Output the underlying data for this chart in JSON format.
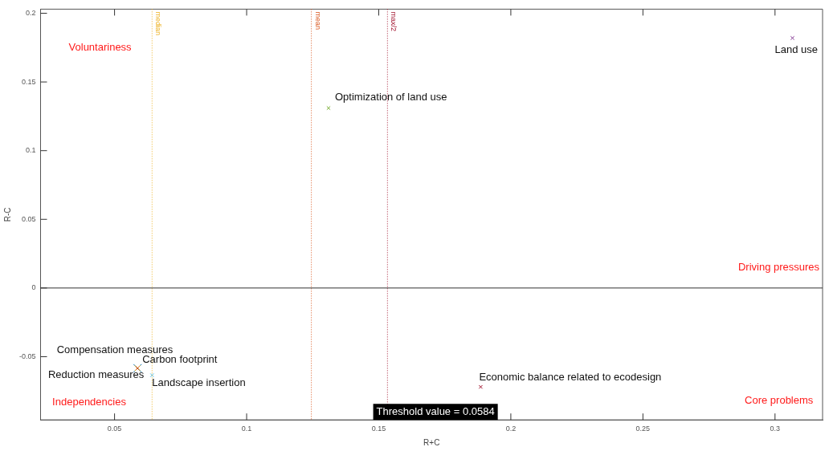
{
  "chart_data": {
    "type": "scatter",
    "xlabel": "R+C",
    "ylabel": "R-C",
    "xlim": [
      0.022,
      0.318
    ],
    "ylim": [
      -0.096,
      0.203
    ],
    "xticks": [
      0.05,
      0.1,
      0.15,
      0.2,
      0.25,
      0.3
    ],
    "yticks": [
      -0.05,
      0,
      0.05,
      0.1,
      0.15,
      0.2
    ],
    "grid": false,
    "legend": false,
    "marker": "cross",
    "series": [
      {
        "name": "Land use",
        "color": "#7e2f8e",
        "x": [
          0.3066
        ],
        "values": [
          0.182
        ]
      },
      {
        "name": "Optimization of land use",
        "color": "#77ac30",
        "x": [
          0.131
        ],
        "values": [
          0.131
        ]
      },
      {
        "name": "Economic balance related to ecodesign",
        "color": "#a2142f",
        "x": [
          0.1886
        ],
        "values": [
          -0.072
        ]
      },
      {
        "name": "Carbon footprint",
        "color": "#d95319",
        "x": [
          0.0587
        ],
        "values": [
          -0.0584
        ]
      },
      {
        "name": "Compensation measures",
        "color": "#edb120",
        "x": [
          0.0587
        ],
        "values": [
          -0.0584
        ]
      },
      {
        "name": "Reduction measures",
        "color": "#0072bd",
        "x": [
          0.0587
        ],
        "values": [
          -0.0584
        ]
      },
      {
        "name": "Landscape insertion",
        "color": "#4dbeee",
        "x": [
          0.0642
        ],
        "values": [
          -0.0635
        ]
      }
    ],
    "ref_lines": [
      {
        "axis": "x",
        "value": 0.0642,
        "label": "median",
        "color": "#edb120",
        "line_style": "dotted"
      },
      {
        "axis": "x",
        "value": 0.1245,
        "label": "mean",
        "color": "#d95319",
        "line_style": "dotted"
      },
      {
        "axis": "x",
        "value": 0.1533,
        "label": "max/2",
        "color": "#a2142f",
        "line_style": "dotted"
      },
      {
        "axis": "y",
        "value": 0,
        "label": null,
        "color": "#333333",
        "line_style": "solid"
      }
    ],
    "annotations": [
      "Voluntariness",
      "Driving pressures",
      "Independencies",
      "Core problems",
      "Threshold value = 0.0584"
    ]
  }
}
